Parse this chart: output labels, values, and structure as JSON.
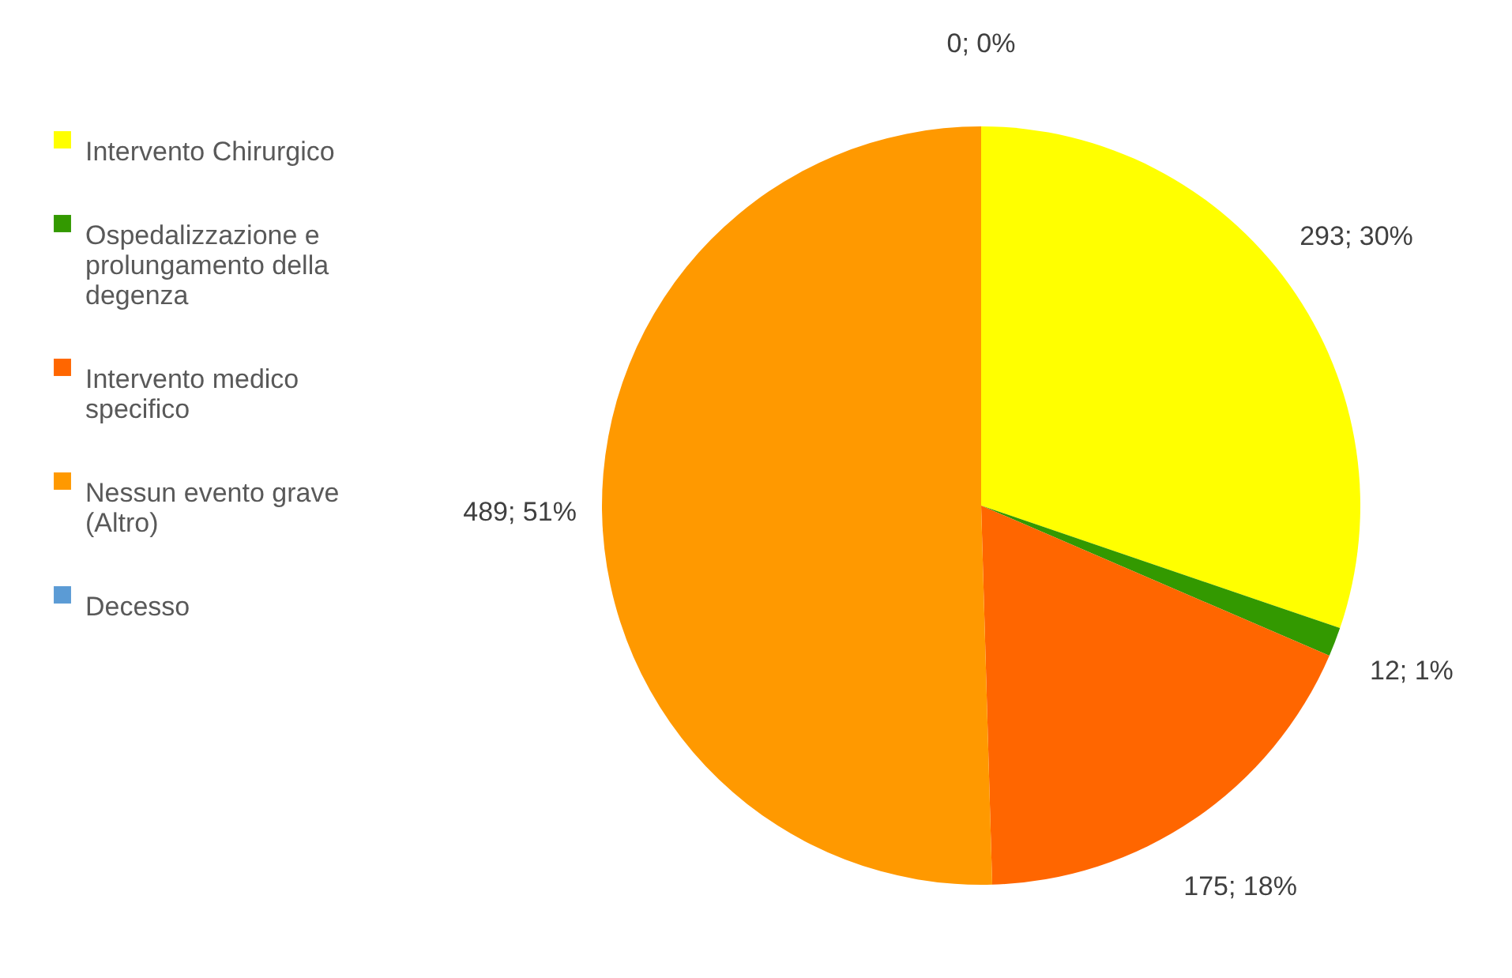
{
  "chart_data": {
    "type": "pie",
    "categories": [
      "Intervento Chirurgico",
      "Ospedalizzazione e prolungamento della degenza",
      "Intervento medico specifico",
      "Nessun evento grave (Altro)",
      "Decesso"
    ],
    "values": [
      293,
      12,
      175,
      489,
      0
    ],
    "colors": [
      "#ffff00",
      "#339900",
      "#ff6600",
      "#ff9900",
      "#5b9bd5"
    ],
    "value_labels": [
      "293; 30%",
      "12; 1%",
      "175; 18%",
      "489; 51%",
      "0; 0%"
    ],
    "legend": "left"
  }
}
